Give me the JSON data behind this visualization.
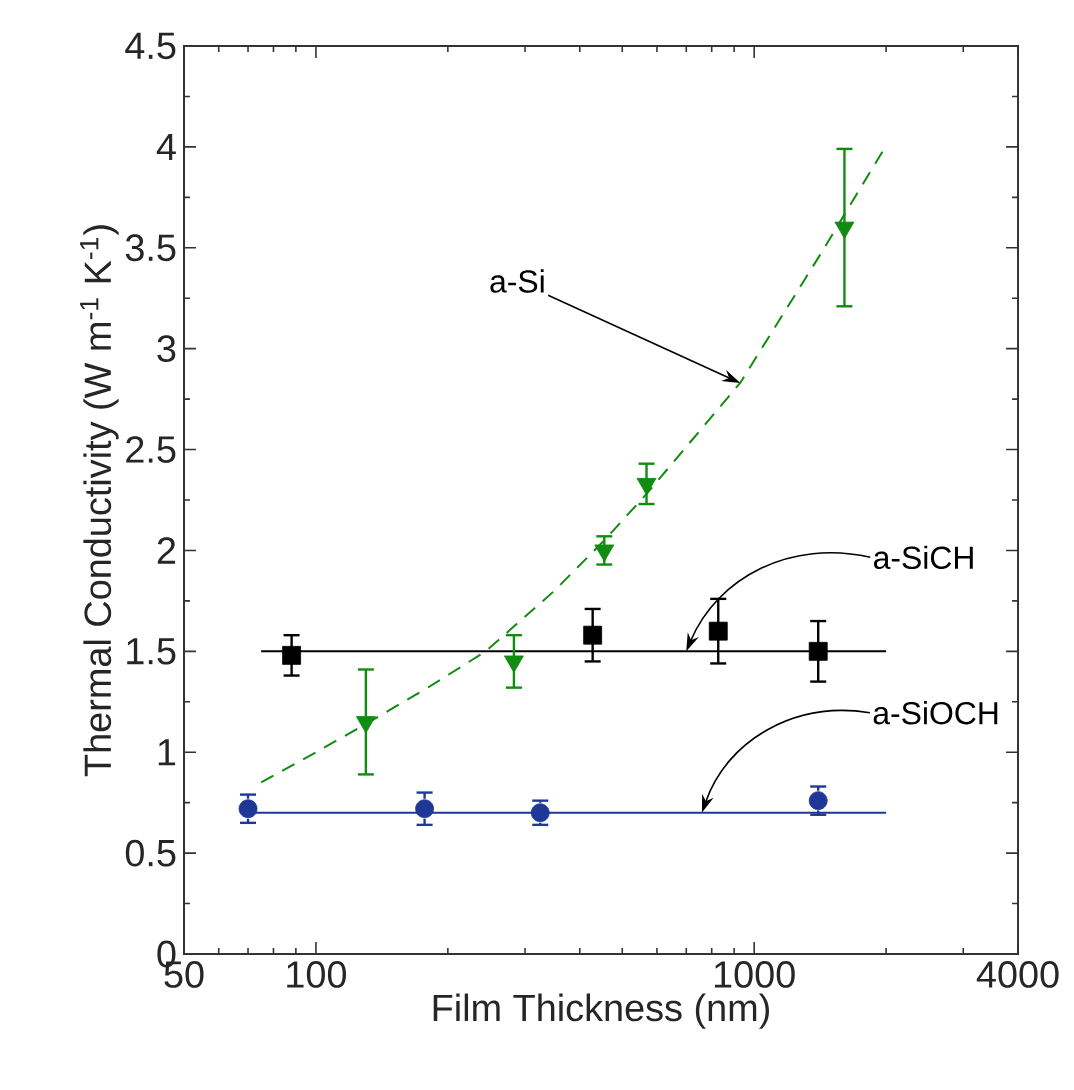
{
  "chart_data": {
    "type": "scatter",
    "xlabel": "Film Thickness (nm)",
    "ylabel": "Thermal Conductivity (W m$^{-1}$ K$^{-1}$)",
    "log": "x",
    "xlim": [
      50,
      4000
    ],
    "xticks": [
      50,
      100,
      1000,
      4000
    ],
    "ylim": [
      0,
      4.5
    ],
    "yticks": [
      0,
      0.5,
      1,
      1.5,
      2,
      2.5,
      3,
      3.5,
      4,
      4.5
    ],
    "series": [
      {
        "type": "line",
        "line_style": "dashed",
        "color": "#108c10",
        "x": [
          75,
          100,
          130,
          180,
          244,
          350,
          455,
          568,
          929,
          1400,
          1980
        ],
        "values": [
          0.85,
          1.0,
          1.14,
          1.32,
          1.5,
          1.8,
          2.05,
          2.28,
          2.83,
          3.45,
          3.99
        ]
      },
      {
        "type": "line",
        "line_style": "solid",
        "color": "#000000",
        "x": [
          75,
          2000
        ],
        "values": [
          1.5,
          1.5
        ]
      },
      {
        "type": "line",
        "line_style": "solid",
        "color": "#1f3796",
        "x": [
          70,
          2000
        ],
        "values": [
          0.7,
          0.7
        ]
      },
      {
        "marker": "triangle",
        "color": "#108c10",
        "x": [
          130,
          283,
          455,
          568,
          1607
        ],
        "values": [
          1.15,
          1.45,
          2.0,
          2.33,
          3.6
        ],
        "errors": [
          0.26,
          0.13,
          0.07,
          0.1,
          0.39
        ]
      },
      {
        "marker": "square",
        "color": "#000000",
        "x": [
          88,
          428,
          828,
          1400
        ],
        "values": [
          1.48,
          1.58,
          1.6,
          1.5
        ],
        "errors": [
          0.1,
          0.13,
          0.16,
          0.15
        ]
      },
      {
        "marker": "circle",
        "color": "#1f3796",
        "x": [
          70,
          177,
          325,
          1400
        ],
        "values": [
          0.72,
          0.72,
          0.7,
          0.76
        ],
        "errors": [
          0.07,
          0.08,
          0.06,
          0.07
        ]
      }
    ],
    "annotations": [
      {
        "text": "a-Si",
        "x": 929,
        "y": 2.83
      },
      {
        "text": "a-SiCH",
        "x": 700,
        "y": 1.5
      },
      {
        "text": "a-SiOCH",
        "x": 760,
        "y": 0.7
      }
    ]
  }
}
